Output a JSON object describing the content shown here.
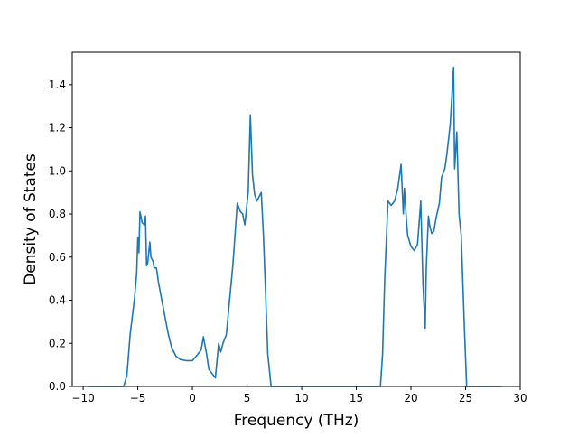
{
  "chart_data": {
    "type": "line",
    "title": "",
    "xlabel": "Frequency (THz)",
    "ylabel": "Density of States",
    "xlim": [
      -11.0,
      30.0
    ],
    "ylim": [
      0.0,
      1.55
    ],
    "xticks": [
      -10,
      -5,
      0,
      5,
      10,
      15,
      20,
      25,
      30
    ],
    "xtick_labels": [
      "−10",
      "−5",
      "0",
      "5",
      "10",
      "15",
      "20",
      "25",
      "30"
    ],
    "yticks": [
      0.0,
      0.2,
      0.4,
      0.6,
      0.8,
      1.0,
      1.2,
      1.4
    ],
    "ytick_labels": [
      "0.0",
      "0.2",
      "0.4",
      "0.6",
      "0.8",
      "1.0",
      "1.2",
      "1.4"
    ],
    "grid": false,
    "line_color": "#1f77b4",
    "series": [
      {
        "x": [
          -9.6,
          -6.3,
          -6.0,
          -5.7,
          -5.3,
          -5.1,
          -5.0,
          -4.9,
          -4.8,
          -4.6,
          -4.4,
          -4.3,
          -4.2,
          -4.1,
          -3.9,
          -3.8,
          -3.6,
          -3.5,
          -3.3,
          -3.1,
          -2.8,
          -2.5,
          -2.2,
          -1.9,
          -1.5,
          -1.1,
          -0.6,
          0.0,
          0.5,
          0.8,
          1.0,
          1.3,
          1.5,
          1.8,
          2.1,
          2.4,
          2.6,
          2.8,
          3.1,
          3.4,
          3.7,
          4.1,
          4.4,
          4.6,
          4.8,
          5.1,
          5.3,
          5.5,
          5.7,
          5.9,
          6.1,
          6.3,
          6.5,
          6.7,
          6.9,
          7.2,
          7.4,
          7.5,
          8.0,
          12.0,
          17.2,
          17.4,
          17.6,
          17.9,
          18.2,
          18.5,
          18.8,
          19.1,
          19.3,
          19.4,
          19.6,
          19.7,
          20.0,
          20.3,
          20.6,
          20.9,
          21.1,
          21.3,
          21.4,
          21.6,
          21.7,
          21.9,
          22.1,
          22.3,
          22.6,
          22.8,
          23.1,
          23.3,
          23.6,
          23.9,
          24.0,
          24.2,
          24.4,
          24.6,
          24.9,
          25.1,
          25.3,
          26.0,
          28.3
        ],
        "y": [
          0.0,
          0.0,
          0.05,
          0.24,
          0.41,
          0.53,
          0.69,
          0.62,
          0.81,
          0.76,
          0.75,
          0.79,
          0.56,
          0.57,
          0.67,
          0.6,
          0.58,
          0.55,
          0.55,
          0.48,
          0.4,
          0.32,
          0.24,
          0.18,
          0.14,
          0.125,
          0.12,
          0.12,
          0.15,
          0.17,
          0.23,
          0.15,
          0.08,
          0.06,
          0.04,
          0.2,
          0.16,
          0.2,
          0.24,
          0.4,
          0.56,
          0.85,
          0.81,
          0.8,
          0.75,
          0.9,
          1.26,
          0.98,
          0.89,
          0.86,
          0.88,
          0.9,
          0.7,
          0.43,
          0.15,
          0.0,
          0.0,
          0.0,
          0.0,
          0.0,
          0.0,
          0.15,
          0.5,
          0.86,
          0.84,
          0.86,
          0.92,
          1.03,
          0.8,
          0.92,
          0.76,
          0.7,
          0.65,
          0.63,
          0.66,
          0.86,
          0.48,
          0.27,
          0.55,
          0.79,
          0.75,
          0.71,
          0.72,
          0.78,
          0.85,
          0.97,
          1.01,
          1.08,
          1.22,
          1.48,
          1.01,
          1.18,
          0.8,
          0.7,
          0.26,
          0.0,
          0.0,
          0.0,
          0.0
        ]
      }
    ]
  }
}
